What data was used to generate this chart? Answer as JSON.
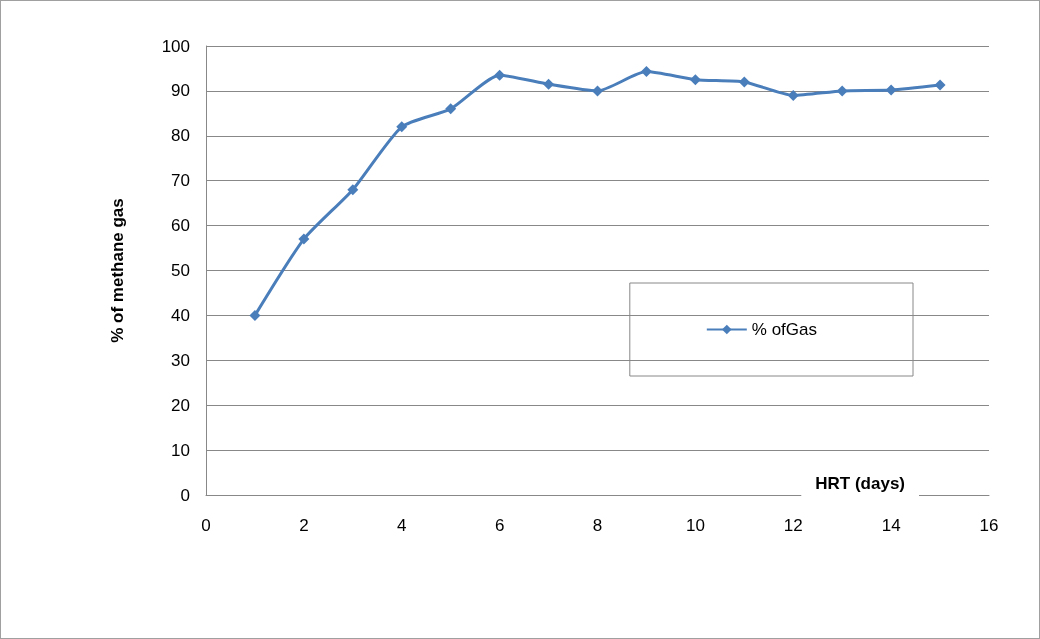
{
  "chart_data": {
    "type": "line",
    "xlabel": "HRT (days)",
    "ylabel": "% of methane gas",
    "x": [
      1,
      2,
      3,
      4,
      5,
      6,
      7,
      8,
      9,
      10,
      11,
      12,
      13,
      14,
      15
    ],
    "series": [
      {
        "name": "% ofGas",
        "color": "#4a7ebb",
        "values": [
          40,
          57,
          68,
          82,
          86,
          93.5,
          91.5,
          90,
          94.3,
          92.5,
          92,
          89,
          90,
          90.2,
          91.3
        ]
      }
    ],
    "xlim": [
      0,
      16
    ],
    "xticks": [
      0,
      2,
      4,
      6,
      8,
      10,
      12,
      14,
      16
    ],
    "ylim": [
      0,
      100
    ],
    "yticks": [
      0,
      10,
      20,
      30,
      40,
      50,
      60,
      70,
      80,
      90,
      100
    ],
    "grid": "y",
    "legend": "right",
    "marker": "diamond",
    "line_style": "solid"
  }
}
